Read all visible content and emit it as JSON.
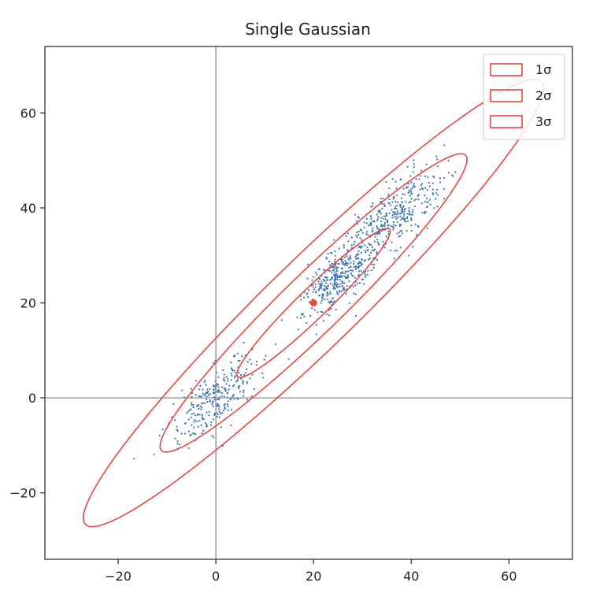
{
  "chart_data": {
    "type": "scatter",
    "title": "Single Gaussian",
    "xlabel": "",
    "ylabel": "",
    "xlim": [
      -35,
      73
    ],
    "ylim": [
      -34,
      74
    ],
    "xticks": [
      -20,
      0,
      20,
      40,
      60
    ],
    "yticks": [
      -20,
      0,
      20,
      40,
      60
    ],
    "xtick_labels": [
      "−20",
      "0",
      "20",
      "40",
      "60"
    ],
    "ytick_labels": [
      "−20",
      "0",
      "20",
      "40",
      "60"
    ],
    "grid": false,
    "reference_lines": {
      "x": 0,
      "y": 0
    },
    "colors": {
      "points": "#3a75b0",
      "ellipse": "#e8473f",
      "mean": "#e8473f",
      "axes": "#222222",
      "reference": "#808080"
    },
    "mean": {
      "x": 20,
      "y": 20
    },
    "ellipse": {
      "center": [
        20,
        20
      ],
      "major_direction": [
        0.707,
        0.707
      ],
      "sigma_major": 22,
      "sigma_minor": 3.1
    },
    "clusters": [
      {
        "center": [
          0,
          0
        ],
        "count": 280,
        "sd_major": 6,
        "sd_minor": 2.4
      },
      {
        "center": [
          25,
          25
        ],
        "count": 350,
        "sd_major": 5,
        "sd_minor": 2.0
      },
      {
        "center": [
          36,
          38
        ],
        "count": 380,
        "sd_major": 7,
        "sd_minor": 2.6
      }
    ],
    "legend": {
      "position": "top-right",
      "entries": [
        "1σ",
        "2σ",
        "3σ"
      ]
    }
  }
}
